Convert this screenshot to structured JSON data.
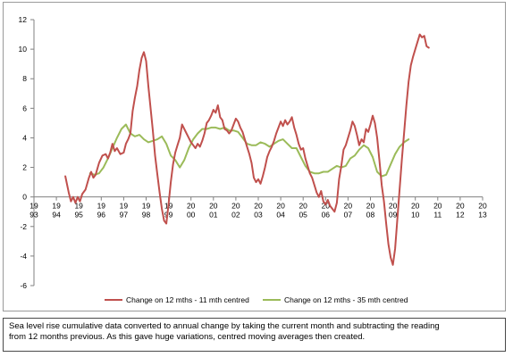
{
  "chart_data": {
    "type": "line",
    "title": "",
    "xlabel": "",
    "ylabel": "",
    "ylim": [
      -6,
      12
    ],
    "y_ticks": [
      -6,
      -4,
      -2,
      0,
      2,
      4,
      6,
      8,
      10,
      12
    ],
    "xlim": [
      1993,
      2013
    ],
    "x_ticks": [
      {
        "line1": "19",
        "line2": "93"
      },
      {
        "line1": "19",
        "line2": "94"
      },
      {
        "line1": "19",
        "line2": "95"
      },
      {
        "line1": "19",
        "line2": "96"
      },
      {
        "line1": "19",
        "line2": "97"
      },
      {
        "line1": "19",
        "line2": "98"
      },
      {
        "line1": "19",
        "line2": "99"
      },
      {
        "line1": "20",
        "line2": "00"
      },
      {
        "line1": "20",
        "line2": "01"
      },
      {
        "line1": "20",
        "line2": "02"
      },
      {
        "line1": "20",
        "line2": "03"
      },
      {
        "line1": "20",
        "line2": "04"
      },
      {
        "line1": "20",
        "line2": "05"
      },
      {
        "line1": "20",
        "line2": "06"
      },
      {
        "line1": "20",
        "line2": "07"
      },
      {
        "line1": "20",
        "line2": "08"
      },
      {
        "line1": "20",
        "line2": "09"
      },
      {
        "line1": "20",
        "line2": "10"
      },
      {
        "line1": "20",
        "line2": "11"
      },
      {
        "line1": "20",
        "line2": "12"
      },
      {
        "line1": "20",
        "line2": "13"
      }
    ],
    "grid": false,
    "legend_position": "bottom",
    "series": [
      {
        "name": "Change on 12 mths - 11 mth centred",
        "color": "#c0504d",
        "points": [
          [
            1994.4,
            1.4
          ],
          [
            1994.55,
            0.3
          ],
          [
            1994.65,
            -0.3
          ],
          [
            1994.75,
            0.0
          ],
          [
            1994.85,
            -0.4
          ],
          [
            1994.95,
            0.0
          ],
          [
            1995.05,
            -0.3
          ],
          [
            1995.15,
            0.2
          ],
          [
            1995.3,
            0.5
          ],
          [
            1995.45,
            1.3
          ],
          [
            1995.55,
            1.7
          ],
          [
            1995.65,
            1.3
          ],
          [
            1995.75,
            1.5
          ],
          [
            1995.9,
            2.3
          ],
          [
            1996.05,
            2.8
          ],
          [
            1996.2,
            2.9
          ],
          [
            1996.3,
            2.6
          ],
          [
            1996.4,
            3.0
          ],
          [
            1996.5,
            3.6
          ],
          [
            1996.6,
            3.1
          ],
          [
            1996.7,
            3.3
          ],
          [
            1996.85,
            2.9
          ],
          [
            1997.0,
            3.0
          ],
          [
            1997.1,
            3.6
          ],
          [
            1997.2,
            3.9
          ],
          [
            1997.3,
            4.3
          ],
          [
            1997.4,
            5.8
          ],
          [
            1997.5,
            6.7
          ],
          [
            1997.6,
            7.5
          ],
          [
            1997.7,
            8.6
          ],
          [
            1997.8,
            9.4
          ],
          [
            1997.9,
            9.8
          ],
          [
            1998.0,
            9.2
          ],
          [
            1998.1,
            7.5
          ],
          [
            1998.2,
            6.0
          ],
          [
            1998.3,
            4.5
          ],
          [
            1998.4,
            2.8
          ],
          [
            1998.5,
            1.5
          ],
          [
            1998.6,
            0.3
          ],
          [
            1998.7,
            -0.8
          ],
          [
            1998.8,
            -1.6
          ],
          [
            1998.9,
            -1.8
          ],
          [
            1999.0,
            -0.5
          ],
          [
            1999.1,
            1.0
          ],
          [
            1999.2,
            2.2
          ],
          [
            1999.3,
            3.0
          ],
          [
            1999.4,
            3.5
          ],
          [
            1999.5,
            4.0
          ],
          [
            1999.6,
            4.9
          ],
          [
            1999.7,
            4.6
          ],
          [
            1999.8,
            4.3
          ],
          [
            1999.9,
            4.0
          ],
          [
            2000.0,
            3.7
          ],
          [
            2000.1,
            3.5
          ],
          [
            2000.2,
            3.3
          ],
          [
            2000.3,
            3.6
          ],
          [
            2000.4,
            3.4
          ],
          [
            2000.5,
            3.8
          ],
          [
            2000.6,
            4.3
          ],
          [
            2000.7,
            5.0
          ],
          [
            2000.8,
            5.2
          ],
          [
            2000.9,
            5.5
          ],
          [
            2001.0,
            5.9
          ],
          [
            2001.1,
            5.7
          ],
          [
            2001.2,
            6.2
          ],
          [
            2001.3,
            5.4
          ],
          [
            2001.4,
            5.2
          ],
          [
            2001.5,
            4.6
          ],
          [
            2001.6,
            4.5
          ],
          [
            2001.7,
            4.3
          ],
          [
            2001.8,
            4.5
          ],
          [
            2001.9,
            4.9
          ],
          [
            2002.0,
            5.3
          ],
          [
            2002.1,
            5.1
          ],
          [
            2002.2,
            4.7
          ],
          [
            2002.3,
            4.4
          ],
          [
            2002.4,
            3.9
          ],
          [
            2002.5,
            3.4
          ],
          [
            2002.6,
            2.9
          ],
          [
            2002.7,
            2.3
          ],
          [
            2002.8,
            1.3
          ],
          [
            2002.9,
            1.0
          ],
          [
            2003.0,
            1.2
          ],
          [
            2003.1,
            0.9
          ],
          [
            2003.2,
            1.4
          ],
          [
            2003.3,
            2.0
          ],
          [
            2003.4,
            2.7
          ],
          [
            2003.5,
            3.1
          ],
          [
            2003.6,
            3.4
          ],
          [
            2003.7,
            3.8
          ],
          [
            2003.8,
            4.3
          ],
          [
            2003.9,
            4.7
          ],
          [
            2004.0,
            5.1
          ],
          [
            2004.1,
            4.8
          ],
          [
            2004.2,
            5.2
          ],
          [
            2004.3,
            4.9
          ],
          [
            2004.4,
            5.1
          ],
          [
            2004.5,
            5.4
          ],
          [
            2004.6,
            4.7
          ],
          [
            2004.7,
            4.2
          ],
          [
            2004.8,
            3.6
          ],
          [
            2004.9,
            3.2
          ],
          [
            2005.0,
            3.3
          ],
          [
            2005.1,
            2.6
          ],
          [
            2005.2,
            2.1
          ],
          [
            2005.3,
            1.6
          ],
          [
            2005.4,
            1.3
          ],
          [
            2005.5,
            0.8
          ],
          [
            2005.6,
            0.3
          ],
          [
            2005.7,
            0.0
          ],
          [
            2005.8,
            0.4
          ],
          [
            2005.9,
            -0.3
          ],
          [
            2006.0,
            -0.5
          ],
          [
            2006.1,
            -0.2
          ],
          [
            2006.2,
            -0.6
          ],
          [
            2006.3,
            -0.8
          ],
          [
            2006.4,
            -1.0
          ],
          [
            2006.5,
            -0.4
          ],
          [
            2006.6,
            1.2
          ],
          [
            2006.7,
            2.1
          ],
          [
            2006.8,
            3.2
          ],
          [
            2006.9,
            3.5
          ],
          [
            2007.0,
            4.0
          ],
          [
            2007.1,
            4.5
          ],
          [
            2007.2,
            5.1
          ],
          [
            2007.3,
            4.8
          ],
          [
            2007.4,
            4.2
          ],
          [
            2007.5,
            3.5
          ],
          [
            2007.6,
            3.9
          ],
          [
            2007.7,
            3.7
          ],
          [
            2007.8,
            4.6
          ],
          [
            2007.9,
            4.4
          ],
          [
            2008.0,
            4.9
          ],
          [
            2008.1,
            5.5
          ],
          [
            2008.2,
            5.0
          ],
          [
            2008.3,
            4.0
          ],
          [
            2008.4,
            2.5
          ],
          [
            2008.5,
            0.8
          ],
          [
            2008.6,
            -0.3
          ],
          [
            2008.7,
            -1.8
          ],
          [
            2008.8,
            -3.2
          ],
          [
            2008.9,
            -4.1
          ],
          [
            2009.0,
            -4.6
          ],
          [
            2009.1,
            -3.5
          ],
          [
            2009.2,
            -1.5
          ],
          [
            2009.3,
            0.5
          ],
          [
            2009.4,
            2.5
          ],
          [
            2009.5,
            4.3
          ],
          [
            2009.6,
            6.2
          ],
          [
            2009.7,
            7.8
          ],
          [
            2009.8,
            8.9
          ],
          [
            2009.9,
            9.5
          ],
          [
            2010.0,
            10.0
          ],
          [
            2010.1,
            10.5
          ],
          [
            2010.2,
            11.0
          ],
          [
            2010.3,
            10.8
          ],
          [
            2010.4,
            10.9
          ],
          [
            2010.5,
            10.2
          ],
          [
            2010.6,
            10.1
          ]
        ]
      },
      {
        "name": "Change on 12 mths - 35 mth centred",
        "color": "#9bbb59",
        "points": [
          [
            1995.5,
            1.6
          ],
          [
            1995.7,
            1.5
          ],
          [
            1995.9,
            1.6
          ],
          [
            1996.1,
            2.0
          ],
          [
            1996.3,
            2.6
          ],
          [
            1996.5,
            3.3
          ],
          [
            1996.7,
            4.0
          ],
          [
            1996.9,
            4.6
          ],
          [
            1997.1,
            4.9
          ],
          [
            1997.3,
            4.3
          ],
          [
            1997.5,
            4.1
          ],
          [
            1997.7,
            4.2
          ],
          [
            1997.9,
            3.9
          ],
          [
            1998.1,
            3.7
          ],
          [
            1998.3,
            3.8
          ],
          [
            1998.5,
            3.9
          ],
          [
            1998.7,
            4.1
          ],
          [
            1998.9,
            3.6
          ],
          [
            1999.1,
            2.8
          ],
          [
            1999.3,
            2.5
          ],
          [
            1999.5,
            2.0
          ],
          [
            1999.7,
            2.5
          ],
          [
            1999.9,
            3.3
          ],
          [
            2000.1,
            3.9
          ],
          [
            2000.3,
            4.3
          ],
          [
            2000.5,
            4.6
          ],
          [
            2000.7,
            4.6
          ],
          [
            2000.9,
            4.7
          ],
          [
            2001.1,
            4.7
          ],
          [
            2001.3,
            4.6
          ],
          [
            2001.5,
            4.7
          ],
          [
            2001.7,
            4.5
          ],
          [
            2001.9,
            4.5
          ],
          [
            2002.1,
            4.4
          ],
          [
            2002.3,
            4.0
          ],
          [
            2002.5,
            3.6
          ],
          [
            2002.7,
            3.5
          ],
          [
            2002.9,
            3.5
          ],
          [
            2003.1,
            3.7
          ],
          [
            2003.3,
            3.6
          ],
          [
            2003.5,
            3.4
          ],
          [
            2003.7,
            3.6
          ],
          [
            2003.9,
            3.8
          ],
          [
            2004.1,
            3.9
          ],
          [
            2004.3,
            3.6
          ],
          [
            2004.5,
            3.3
          ],
          [
            2004.7,
            3.3
          ],
          [
            2004.9,
            2.7
          ],
          [
            2005.1,
            2.1
          ],
          [
            2005.3,
            1.7
          ],
          [
            2005.5,
            1.6
          ],
          [
            2005.7,
            1.6
          ],
          [
            2005.9,
            1.7
          ],
          [
            2006.1,
            1.7
          ],
          [
            2006.3,
            1.9
          ],
          [
            2006.5,
            2.1
          ],
          [
            2006.7,
            2.0
          ],
          [
            2006.9,
            2.1
          ],
          [
            2007.1,
            2.6
          ],
          [
            2007.3,
            2.8
          ],
          [
            2007.5,
            3.2
          ],
          [
            2007.7,
            3.5
          ],
          [
            2007.9,
            3.3
          ],
          [
            2008.1,
            2.7
          ],
          [
            2008.3,
            1.7
          ],
          [
            2008.5,
            1.4
          ],
          [
            2008.7,
            1.5
          ],
          [
            2008.9,
            2.2
          ],
          [
            2009.1,
            2.9
          ],
          [
            2009.3,
            3.4
          ],
          [
            2009.5,
            3.7
          ],
          [
            2009.7,
            3.9
          ]
        ]
      }
    ]
  },
  "caption": {
    "line1": "Sea level rise cumulative data converted to annual change by taking the current month and subtracting the reading",
    "line2": "from 12 months previous.  As this gave huge variations, centred moving averages then created."
  }
}
